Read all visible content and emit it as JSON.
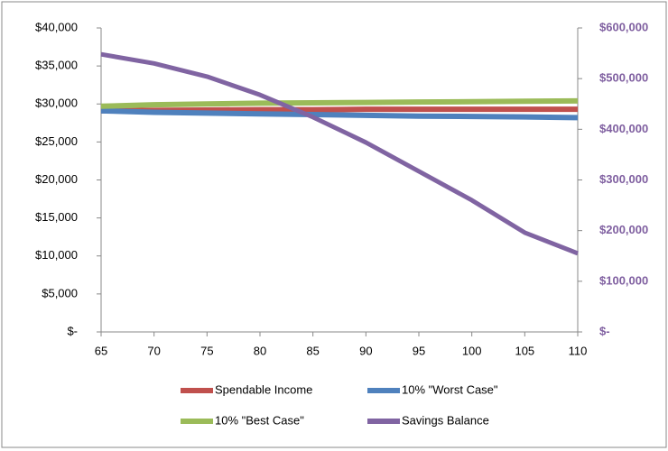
{
  "chart_data": {
    "type": "line",
    "x": [
      65,
      70,
      75,
      80,
      85,
      90,
      95,
      100,
      105,
      110
    ],
    "xlim": [
      65,
      110
    ],
    "xticks": [
      65,
      70,
      75,
      80,
      85,
      90,
      95,
      100,
      105,
      110
    ],
    "ylim": [
      0,
      40000
    ],
    "yticks": [
      {
        "value": 0,
        "label": "$-"
      },
      {
        "value": 5000,
        "label": "$5,000"
      },
      {
        "value": 10000,
        "label": "$10,000"
      },
      {
        "value": 15000,
        "label": "$15,000"
      },
      {
        "value": 20000,
        "label": "$20,000"
      },
      {
        "value": 25000,
        "label": "$25,000"
      },
      {
        "value": 30000,
        "label": "$30,000"
      },
      {
        "value": 35000,
        "label": "$35,000"
      },
      {
        "value": 40000,
        "label": "$40,000"
      }
    ],
    "y2lim": [
      0,
      600000
    ],
    "y2ticks": [
      {
        "value": 0,
        "label": "$-"
      },
      {
        "value": 100000,
        "label": "$100,000"
      },
      {
        "value": 200000,
        "label": "$200,000"
      },
      {
        "value": 300000,
        "label": "$300,000"
      },
      {
        "value": 400000,
        "label": "$400,000"
      },
      {
        "value": 500000,
        "label": "$500,000"
      },
      {
        "value": 600000,
        "label": "$600,000"
      }
    ],
    "y2_color": "#7f5fa0",
    "series": [
      {
        "name": "Spendable Income",
        "color": "#c0504d",
        "values": [
          29100,
          29150,
          29200,
          29250,
          29250,
          29300,
          29300,
          29300,
          29300,
          29300
        ]
      },
      {
        "name": "10% \"Worst Case\"",
        "color": "#4f81bd",
        "values": [
          29100,
          28900,
          28800,
          28700,
          28600,
          28500,
          28400,
          28350,
          28300,
          28200
        ]
      },
      {
        "name": "10% \"Best Case\"",
        "color": "#9bbb59",
        "values": [
          29700,
          29900,
          30000,
          30100,
          30150,
          30200,
          30250,
          30300,
          30350,
          30400
        ]
      },
      {
        "name": "Savings Balance",
        "color": "#8064a2",
        "axis": "y2",
        "values": [
          548000,
          530000,
          504000,
          468000,
          424000,
          374000,
          317000,
          260000,
          196000,
          155000
        ]
      }
    ]
  }
}
